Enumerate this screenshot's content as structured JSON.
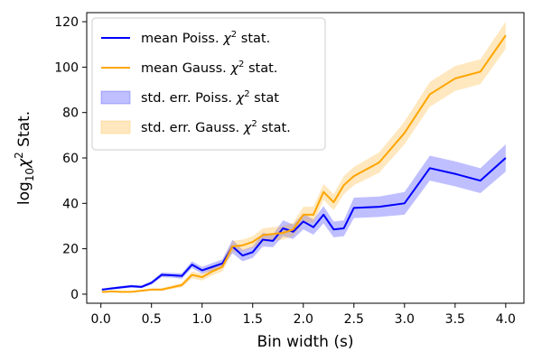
{
  "chart_data": {
    "type": "line",
    "title": "",
    "xlabel": "Bin width (s)",
    "ylabel_parts": {
      "base": "log",
      "sub": "10",
      "chi": "χ",
      "sup": "2",
      "rest": " Stat."
    },
    "xlim": [
      -0.14,
      4.18
    ],
    "ylim": [
      -4,
      124
    ],
    "xticks": [
      0.0,
      0.5,
      1.0,
      1.5,
      2.0,
      2.5,
      3.0,
      3.5,
      4.0
    ],
    "xtick_labels": [
      "0.0",
      "0.5",
      "1.0",
      "1.5",
      "2.0",
      "2.5",
      "3.0",
      "3.5",
      "4.0"
    ],
    "yticks": [
      0,
      20,
      40,
      60,
      80,
      100,
      120
    ],
    "ytick_labels": [
      "0",
      "20",
      "40",
      "60",
      "80",
      "100",
      "120"
    ],
    "grid": false,
    "legend_position": "upper-left",
    "legend": [
      {
        "kind": "line",
        "color": "#0000ff",
        "text_pre": "mean Poiss. ",
        "text_chi": "χ",
        "text_sup": "2",
        "text_post": " stat."
      },
      {
        "kind": "line",
        "color": "#ffa500",
        "text_pre": "mean Gauss. ",
        "text_chi": "χ",
        "text_sup": "2",
        "text_post": " stat."
      },
      {
        "kind": "band",
        "color": "#0000ff",
        "text_pre": "std. err. Poiss. ",
        "text_chi": "χ",
        "text_sup": "2",
        "text_post": " stat"
      },
      {
        "kind": "band",
        "color": "#ffa500",
        "text_pre": "std. err. Gauss. ",
        "text_chi": "χ",
        "text_sup": "2",
        "text_post": " stat."
      }
    ],
    "x": [
      0.01,
      0.05,
      0.1,
      0.2,
      0.3,
      0.4,
      0.5,
      0.6,
      0.7,
      0.8,
      0.9,
      1.0,
      1.1,
      1.2,
      1.3,
      1.4,
      1.5,
      1.6,
      1.7,
      1.8,
      1.9,
      2.0,
      2.1,
      2.2,
      2.3,
      2.4,
      2.5,
      2.75,
      3.0,
      3.25,
      3.5,
      3.75,
      4.0
    ],
    "series": [
      {
        "name": "mean Poiss. χ2 stat.",
        "color": "#0000ff",
        "values": [
          2.0,
          2.2,
          2.5,
          3.0,
          3.5,
          3.2,
          5.0,
          8.5,
          8.3,
          8.0,
          13.0,
          10.5,
          12.0,
          13.5,
          21.0,
          17.0,
          18.5,
          24.0,
          23.5,
          29.0,
          27.5,
          32.0,
          29.5,
          35.0,
          28.5,
          29.0,
          38.0,
          38.5,
          40.0,
          55.5,
          53.0,
          50.0,
          60.0
        ],
        "err": [
          0.4,
          0.4,
          0.5,
          0.6,
          0.6,
          0.6,
          0.8,
          1.0,
          1.0,
          1.2,
          1.5,
          1.5,
          1.7,
          1.8,
          3.0,
          2.5,
          2.5,
          3.0,
          2.8,
          3.5,
          3.2,
          3.5,
          3.3,
          3.8,
          3.5,
          3.5,
          4.5,
          4.5,
          5.0,
          5.5,
          5.5,
          5.5,
          6.0
        ]
      },
      {
        "name": "mean Gauss. χ2 stat.",
        "color": "#ffa500",
        "values": [
          1.0,
          1.0,
          1.2,
          1.0,
          1.0,
          1.5,
          2.0,
          2.0,
          3.0,
          4.0,
          8.5,
          7.5,
          10.0,
          12.0,
          21.0,
          21.5,
          23.0,
          26.0,
          26.5,
          27.0,
          28.5,
          35.0,
          35.0,
          45.0,
          40.5,
          48.0,
          52.0,
          58.0,
          71.0,
          88.0,
          95.0,
          98.0,
          114.0
        ],
        "err": [
          0.3,
          0.3,
          0.3,
          0.3,
          0.3,
          0.4,
          0.5,
          0.6,
          0.7,
          1.0,
          1.5,
          1.5,
          1.8,
          2.0,
          2.5,
          2.5,
          2.5,
          3.0,
          3.0,
          3.0,
          3.0,
          3.5,
          3.5,
          3.5,
          3.5,
          4.0,
          4.0,
          4.5,
          5.0,
          5.5,
          5.5,
          5.5,
          6.0
        ]
      }
    ]
  }
}
